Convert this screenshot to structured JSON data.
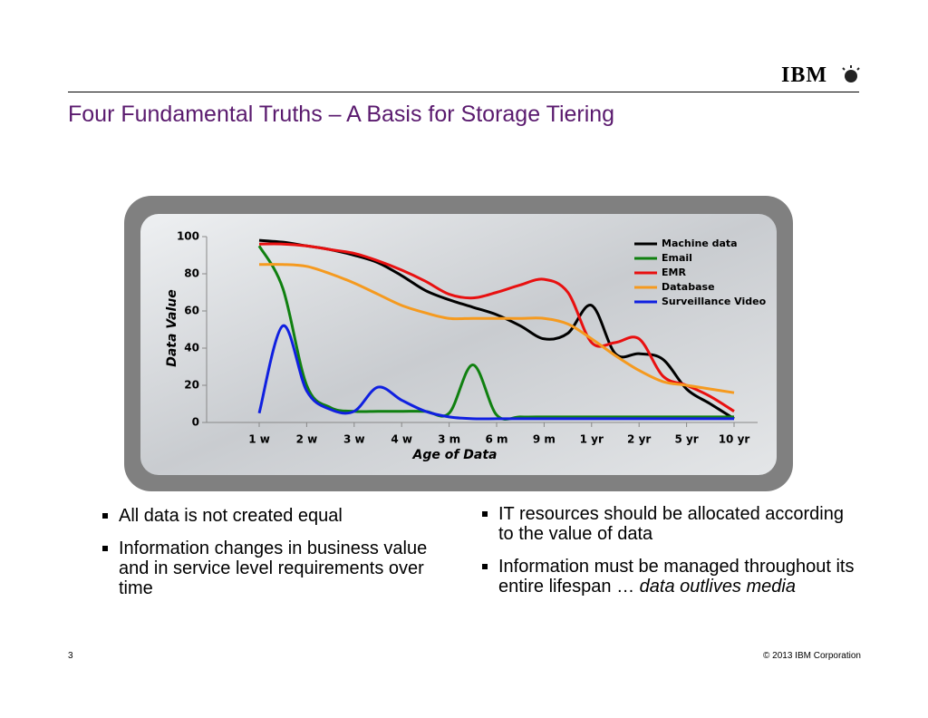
{
  "header": {
    "logo": "IBM",
    "title": "Four Fundamental Truths – A Basis for Storage Tiering"
  },
  "chart_data": {
    "type": "line",
    "y_label": "Data Value",
    "x_label": "Age of Data",
    "categories": [
      "1 w",
      null,
      "2 w",
      null,
      "3 w",
      null,
      "4 w",
      null,
      "3 m",
      null,
      "6 m",
      null,
      "9 m",
      null,
      "1 yr",
      null,
      "2 yr",
      null,
      "5 yr",
      null,
      "10 yr"
    ],
    "ylim": [
      0,
      100
    ],
    "yticks": [
      0,
      20,
      40,
      60,
      80,
      100
    ],
    "legend": "top-right",
    "series": [
      {
        "name": "Machine data",
        "color": "#000000",
        "values": [
          98,
          97,
          95,
          93,
          90,
          86,
          79,
          71,
          66,
          62,
          58,
          52,
          45,
          48,
          63,
          37,
          37,
          34,
          18,
          10,
          2
        ]
      },
      {
        "name": "Email",
        "color": "#108010",
        "values": [
          95,
          72,
          20,
          8,
          6,
          6,
          6,
          6,
          5,
          31,
          4,
          3,
          3,
          3,
          3,
          3,
          3,
          3,
          3,
          3,
          3
        ]
      },
      {
        "name": "EMR",
        "color": "#e81010",
        "values": [
          96,
          96,
          95,
          93,
          91,
          87,
          82,
          76,
          69,
          67,
          70,
          74,
          77,
          70,
          43,
          43,
          45,
          25,
          20,
          14,
          6
        ]
      },
      {
        "name": "Database",
        "color": "#f59a1f",
        "values": [
          85,
          85,
          84,
          80,
          75,
          69,
          63,
          59,
          56,
          56,
          56,
          56,
          56,
          53,
          45,
          36,
          28,
          22,
          20,
          18,
          16
        ]
      },
      {
        "name": "Surveillance Video",
        "color": "#1020e0",
        "values": [
          5,
          52,
          17,
          7,
          6,
          19,
          12,
          6,
          3,
          2,
          2,
          2,
          2,
          2,
          2,
          2,
          2,
          2,
          2,
          2,
          2
        ]
      }
    ]
  },
  "bullets_left": [
    "All data is not created equal",
    "Information changes in business value and in service level requirements over time"
  ],
  "bullets_right": [
    {
      "text": "IT resources should be allocated according to the value of data"
    },
    {
      "text": "Information must be managed throughout its entire lifespan … ",
      "emphasis": "data outlives media"
    }
  ],
  "footer": {
    "page": "3",
    "copyright": "© 2013 IBM Corporation"
  }
}
